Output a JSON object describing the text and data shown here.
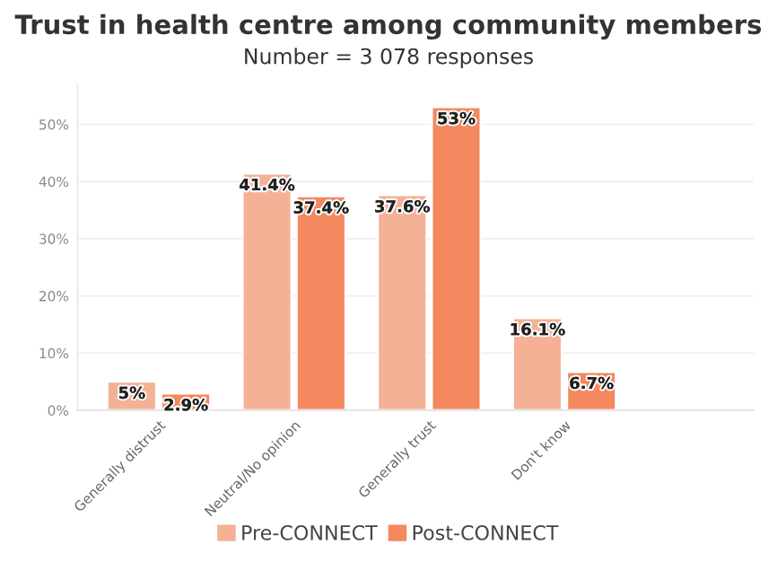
{
  "chart_data": {
    "type": "bar",
    "title": "Trust in health centre among community members",
    "subtitle": "Number = 3 078 responses",
    "categories": [
      "Generally distrust",
      "Neutral/No opinion",
      "Generally trust",
      "Don't know"
    ],
    "series": [
      {
        "name": "Pre-CONNECT",
        "color": "#f5b196",
        "values": [
          5,
          41.4,
          37.6,
          16.1
        ],
        "value_labels": [
          "5%",
          "41.4%",
          "37.6%",
          "16.1%"
        ]
      },
      {
        "name": "Post-CONNECT",
        "color": "#f4885f",
        "values": [
          2.9,
          37.4,
          53,
          6.7
        ],
        "value_labels": [
          "2.9%",
          "37.4%",
          "53%",
          "6.7%"
        ]
      }
    ],
    "ylim": [
      0,
      57
    ],
    "yticks": [
      {
        "value": 0,
        "label": "0%"
      },
      {
        "value": 10,
        "label": "10%"
      },
      {
        "value": 20,
        "label": "20%"
      },
      {
        "value": 30,
        "label": "30%"
      },
      {
        "value": 40,
        "label": "40%"
      },
      {
        "value": 50,
        "label": "50%"
      }
    ],
    "grid": "y",
    "legend": "bottom"
  }
}
